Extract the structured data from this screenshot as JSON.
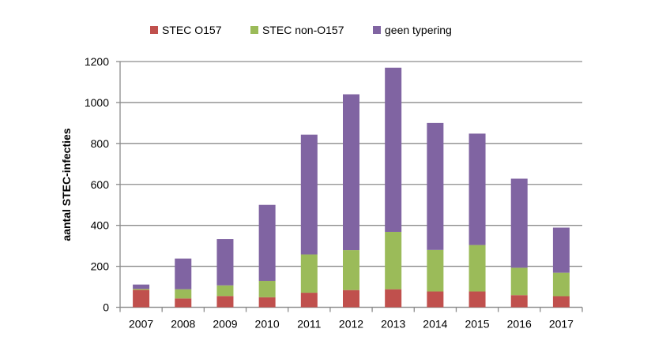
{
  "chart_data": {
    "type": "bar",
    "stacked": true,
    "title": "",
    "xlabel": "",
    "ylabel": "aantal STEC-infecties",
    "ylim": [
      0,
      1200
    ],
    "yticks": [
      0,
      200,
      400,
      600,
      800,
      1000,
      1200
    ],
    "grid": true,
    "legend_position": "top",
    "categories": [
      "2007",
      "2008",
      "2009",
      "2010",
      "2011",
      "2012",
      "2013",
      "2014",
      "2015",
      "2016",
      "2017"
    ],
    "series": [
      {
        "name": "STEC O157",
        "color": "#c0504d",
        "values": [
          85,
          43,
          55,
          49,
          71,
          84,
          88,
          77,
          77,
          59,
          54
        ]
      },
      {
        "name": "STEC non-O157",
        "color": "#9bbb59",
        "values": [
          5,
          45,
          52,
          80,
          187,
          195,
          280,
          203,
          227,
          134,
          115
        ]
      },
      {
        "name": "geen typering",
        "color": "#8064a2",
        "values": [
          21,
          150,
          226,
          371,
          585,
          761,
          802,
          620,
          544,
          435,
          220
        ]
      }
    ]
  }
}
